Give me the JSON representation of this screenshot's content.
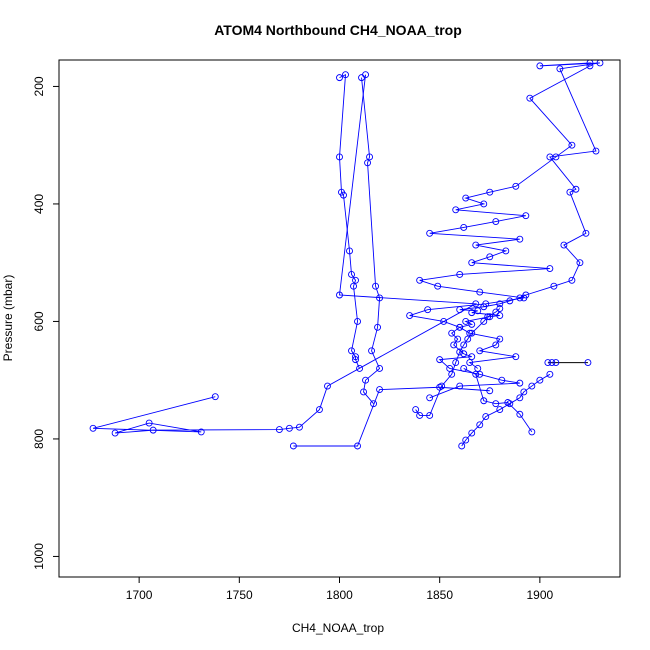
{
  "chart_data": {
    "type": "line",
    "title": "ATOM4 Northbound CH4_NOAA_trop",
    "xlabel": "CH4_NOAA_trop",
    "ylabel": "Pressure (mbar)",
    "xlim": [
      1660,
      1940
    ],
    "ylim": [
      1035,
      155
    ],
    "y_reversed": true,
    "xticks": [
      1700,
      1750,
      1800,
      1850,
      1900
    ],
    "yticks": [
      200,
      400,
      600,
      800,
      1000
    ],
    "grid": false,
    "legend": "none",
    "markers": "open-circle",
    "series_color": "#0000ff",
    "highlight_color": "#000000",
    "series": [
      {
        "x": [
          1925,
          1900,
          1930,
          1910,
          1928,
          1905,
          1918,
          1915,
          1923,
          1912,
          1920,
          1916,
          1907,
          1893,
          1890,
          1885,
          1880,
          1872,
          1860,
          1869,
          1866,
          1880,
          1875,
          1863,
          1866,
          1860,
          1856,
          1859,
          1857,
          1862,
          1866,
          1850,
          1855,
          1870,
          1881,
          1890,
          1860,
          1845
        ],
        "y": [
          160,
          165,
          160,
          170,
          310,
          320,
          375,
          380,
          450,
          470,
          500,
          530,
          540,
          555,
          560,
          565,
          570,
          575,
          580,
          582,
          585,
          590,
          592,
          600,
          605,
          610,
          620,
          630,
          640,
          655,
          660,
          665,
          680,
          690,
          700,
          705,
          710,
          730
        ]
      },
      {
        "x": [
          1925,
          1895,
          1916,
          1908,
          1888,
          1875,
          1863,
          1872,
          1858,
          1893,
          1878,
          1862,
          1845,
          1890,
          1868,
          1883,
          1875,
          1866,
          1905,
          1860,
          1840,
          1849,
          1870,
          1892,
          1873,
          1844,
          1835,
          1852,
          1860,
          1865,
          1880,
          1878,
          1870,
          1888,
          1865,
          1869
        ],
        "y": [
          165,
          220,
          300,
          320,
          370,
          380,
          390,
          400,
          410,
          420,
          430,
          440,
          450,
          460,
          470,
          480,
          490,
          500,
          510,
          520,
          530,
          540,
          550,
          560,
          570,
          580,
          590,
          600,
          610,
          620,
          630,
          640,
          650,
          660,
          670,
          680
        ]
      },
      {
        "x": [
          1800,
          1803,
          1800,
          1801,
          1802,
          1805,
          1806,
          1808,
          1807,
          1809,
          1806,
          1808,
          1808,
          1810
        ],
        "y": [
          185,
          180,
          320,
          380,
          385,
          480,
          520,
          530,
          540,
          600,
          650,
          660,
          665,
          680
        ]
      },
      {
        "x": [
          1811,
          1815,
          1814,
          1818,
          1820,
          1819,
          1816,
          1820,
          1813,
          1812,
          1817
        ],
        "y": [
          185,
          320,
          330,
          540,
          560,
          610,
          650,
          680,
          700,
          720,
          740
        ]
      },
      {
        "x": [
          1813,
          1800,
          1868,
          1794,
          1790,
          1780,
          1775,
          1770,
          1707,
          1688,
          1705,
          1731,
          1677,
          1738
        ],
        "y": [
          180,
          555,
          570,
          710,
          750,
          780,
          782,
          784,
          785,
          790,
          773,
          788,
          782,
          728
        ]
      },
      {
        "x": [
          1777,
          1809,
          1820,
          1850,
          1875
        ],
        "y": [
          812,
          812,
          716,
          712,
          718
        ]
      },
      {
        "x": [
          1838,
          1840,
          1845,
          1851,
          1856,
          1858,
          1860,
          1862,
          1864,
          1866,
          1872,
          1874,
          1878,
          1880
        ],
        "y": [
          750,
          760,
          760,
          710,
          690,
          670,
          652,
          640,
          630,
          620,
          600,
          592,
          584,
          578
        ]
      },
      {
        "x": [
          1861,
          1863,
          1866,
          1870,
          1873,
          1880,
          1885,
          1890,
          1892,
          1896,
          1900,
          1905
        ],
        "y": [
          812,
          802,
          790,
          776,
          762,
          750,
          740,
          730,
          720,
          710,
          700,
          690
        ]
      },
      {
        "x": [
          1862,
          1868,
          1872,
          1878,
          1884,
          1890,
          1896
        ],
        "y": [
          680,
          690,
          735,
          740,
          738,
          758,
          788
        ]
      }
    ],
    "highlight_segment": {
      "x": [
        1904,
        1924
      ],
      "y": [
        670,
        670
      ]
    },
    "highlight_points": {
      "x": [
        1904,
        1906,
        1908,
        1924
      ],
      "y": [
        670,
        670,
        670,
        670
      ]
    }
  }
}
